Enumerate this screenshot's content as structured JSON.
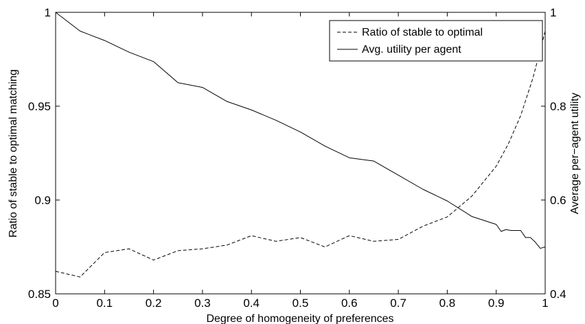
{
  "chart_data": {
    "type": "line",
    "title": "",
    "xlabel": "Degree of homogeneity of preferences",
    "ylabel_left": "Ratio of stable to optimal matching",
    "ylabel_right": "Average per−agent utility",
    "xlim": [
      0,
      1
    ],
    "ylim_left": [
      0.85,
      1
    ],
    "ylim_right": [
      0.4,
      1
    ],
    "x_ticks": [
      "0",
      "0.1",
      "0.2",
      "0.3",
      "0.4",
      "0.5",
      "0.6",
      "0.7",
      "0.8",
      "0.9",
      "1"
    ],
    "y_ticks_left": [
      "0.85",
      "0.9",
      "0.95",
      "1"
    ],
    "y_ticks_right": [
      "0.4",
      "0.6",
      "0.8",
      "1"
    ],
    "grid": false,
    "legend_position": "top-right",
    "series": [
      {
        "name": "Ratio of stable to optimal",
        "axis": "left",
        "style": "dashed",
        "color": "#000000",
        "x": [
          0,
          0.05,
          0.1,
          0.15,
          0.2,
          0.25,
          0.3,
          0.35,
          0.4,
          0.45,
          0.5,
          0.55,
          0.6,
          0.65,
          0.7,
          0.75,
          0.8,
          0.85,
          0.9,
          0.925,
          0.95,
          0.975,
          1.0
        ],
        "y": [
          0.862,
          0.859,
          0.872,
          0.874,
          0.868,
          0.873,
          0.874,
          0.876,
          0.881,
          0.878,
          0.88,
          0.875,
          0.881,
          0.878,
          0.879,
          0.886,
          0.891,
          0.902,
          0.918,
          0.93,
          0.945,
          0.965,
          0.99
        ]
      },
      {
        "name": "Avg. utility per agent",
        "axis": "right",
        "style": "solid",
        "color": "#000000",
        "x": [
          0,
          0.05,
          0.1,
          0.15,
          0.2,
          0.25,
          0.3,
          0.35,
          0.4,
          0.45,
          0.5,
          0.55,
          0.6,
          0.65,
          0.7,
          0.75,
          0.8,
          0.85,
          0.9,
          0.91,
          0.92,
          0.93,
          0.94,
          0.95,
          0.96,
          0.97,
          0.98,
          0.99,
          1.0
        ],
        "y": [
          1.0,
          0.96,
          0.94,
          0.915,
          0.895,
          0.85,
          0.84,
          0.81,
          0.792,
          0.77,
          0.745,
          0.715,
          0.69,
          0.683,
          0.653,
          0.623,
          0.598,
          0.565,
          0.548,
          0.533,
          0.537,
          0.535,
          0.535,
          0.535,
          0.52,
          0.52,
          0.51,
          0.497,
          0.5
        ]
      }
    ]
  }
}
